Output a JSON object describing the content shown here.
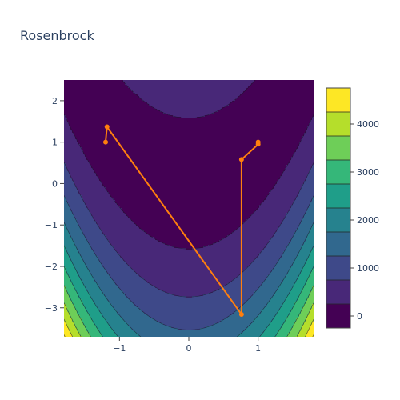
{
  "chart_data": {
    "type": "contour",
    "title": "Rosenbrock",
    "xlabel": "",
    "ylabel": "",
    "xlim": [
      -1.8,
      1.8
    ],
    "ylim": [
      -3.7,
      2.5
    ],
    "x_ticks": [
      "−1",
      "0",
      "1"
    ],
    "x_tick_values": [
      -1,
      0,
      1
    ],
    "y_ticks": [
      "2",
      "1",
      "0",
      "−1",
      "−2",
      "−3"
    ],
    "y_tick_values": [
      2,
      1,
      0,
      -1,
      -2,
      -3
    ],
    "function": "(1 - x)^2 + 100 * (y - x^2)^2",
    "contour_start": -250,
    "contour_step": 500,
    "contour_end": 4750,
    "colorscale": [
      "#440154",
      "#482878",
      "#3e4989",
      "#31688e",
      "#26828e",
      "#1f9e89",
      "#35b779",
      "#6ece58",
      "#b5de2b",
      "#fde725"
    ],
    "colorbar_min": -250,
    "colorbar_max": 4750,
    "colorbar_ticks": [
      "4000",
      "3000",
      "2000",
      "1000",
      "0"
    ],
    "colorbar_tick_values": [
      4000,
      3000,
      2000,
      1000,
      0
    ],
    "path_color": "#ff7f0e",
    "path": {
      "x": [
        -1.2,
        -1.18,
        0.76,
        0.76,
        1.0,
        1.0
      ],
      "y": [
        1.0,
        1.37,
        -3.16,
        0.58,
        0.95,
        1.0
      ]
    },
    "grid": false
  }
}
